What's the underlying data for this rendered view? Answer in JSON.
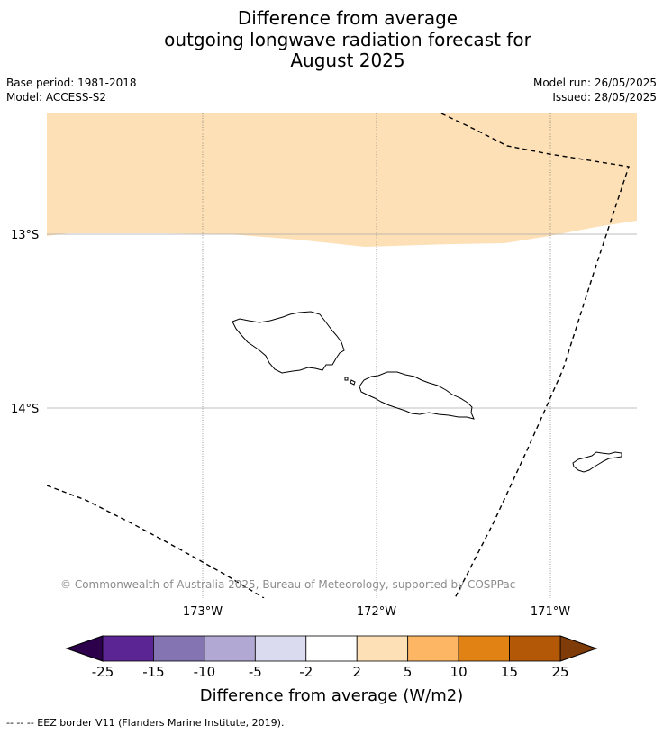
{
  "title": {
    "line1": "Difference from average",
    "line2": "outgoing longwave radiation forecast for",
    "line3": "August 2025"
  },
  "meta": {
    "base_period": "Base period: 1981-2018",
    "model": "Model: ACCESS-S2",
    "model_run": "Model run: 26/05/2025",
    "issued": "Issued: 28/05/2025"
  },
  "map": {
    "lat_labels": [
      "13°S",
      "14°S"
    ],
    "lon_labels": [
      "173°W",
      "172°W",
      "171°W"
    ],
    "attribution": "© Commonwealth of Australia 2025, Bureau of Meteorology, supported by COSPPac",
    "shaded_category": "2 to 5",
    "shaded_color": "#fde0b6",
    "land_outline_color": "#000000",
    "eez_line_style": "dashed"
  },
  "colorbar": {
    "label": "Difference from average (W/m2)",
    "ticks": [
      "-25",
      "-15",
      "-10",
      "-5",
      "-2",
      "2",
      "5",
      "10",
      "15",
      "25"
    ],
    "colors": [
      "#5b2693",
      "#8474b2",
      "#b1a9d4",
      "#dadbee",
      "#ffffff",
      "#fde0b6",
      "#fdb663",
      "#e08214",
      "#b35806"
    ],
    "under_color": "#2d004b",
    "over_color": "#7f3b08"
  },
  "footnote": "--  --  -- EEZ border V11 (Flanders Marine Institute, 2019)."
}
